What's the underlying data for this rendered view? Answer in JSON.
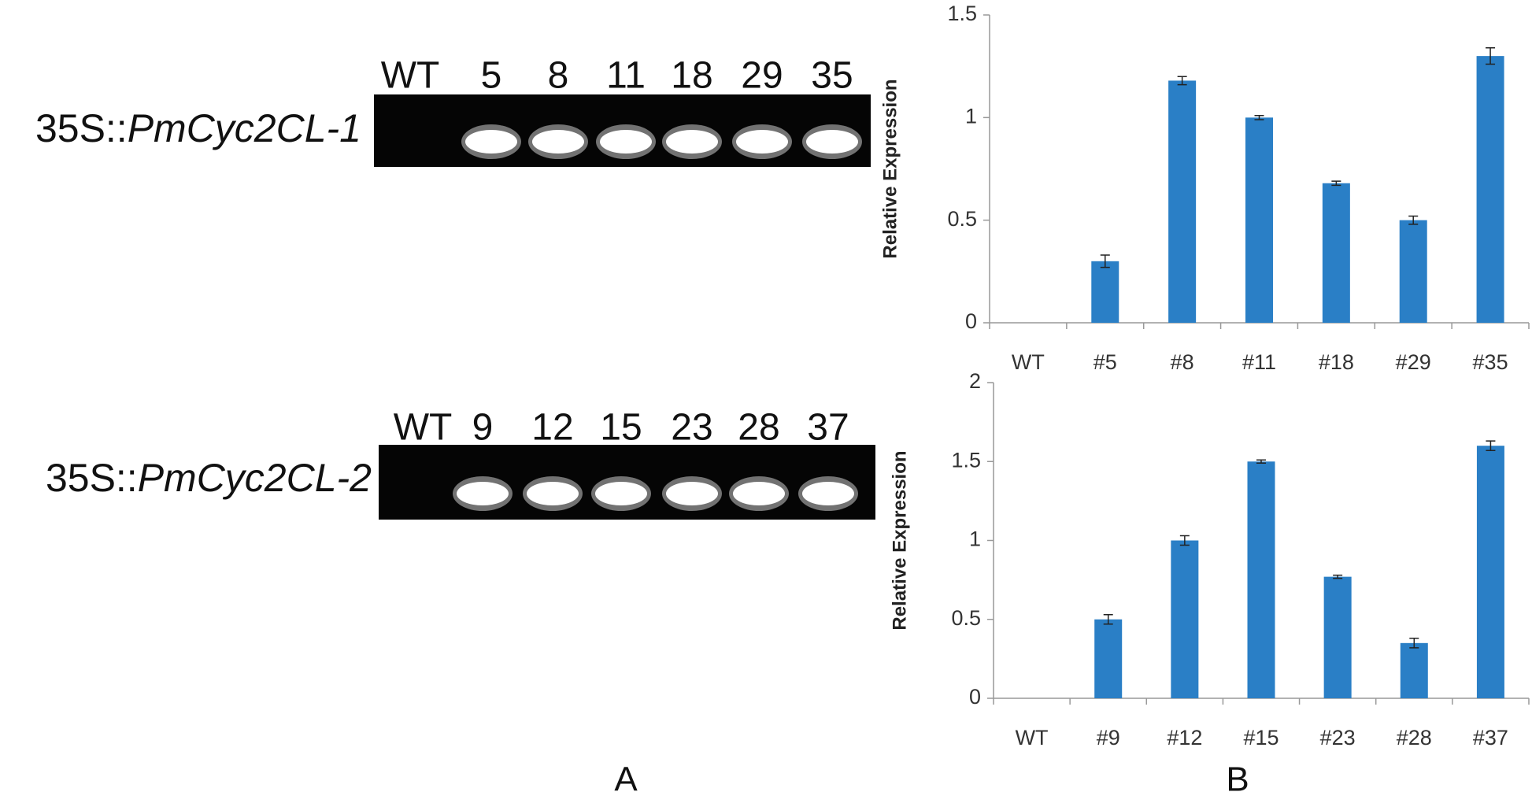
{
  "chart_data": [
    {
      "type": "bar",
      "y_label": "Relative Expression",
      "categories": [
        "WT",
        "#5",
        "#8",
        "#11",
        "#18",
        "#29",
        "#35"
      ],
      "values": [
        0,
        0.3,
        1.18,
        1.0,
        0.68,
        0.5,
        1.3
      ],
      "errors": [
        0,
        0.03,
        0.02,
        0.01,
        0.01,
        0.02,
        0.04
      ],
      "color": "#2a7fc6",
      "ylim": [
        0,
        1.5
      ],
      "yticks": [
        0,
        0.5,
        1,
        1.5
      ],
      "grid": false
    },
    {
      "type": "bar",
      "y_label": "Relative Expression",
      "categories": [
        "WT",
        "#9",
        "#12",
        "#15",
        "#23",
        "#28",
        "#37"
      ],
      "values": [
        0,
        0.5,
        1.0,
        1.5,
        0.77,
        0.35,
        1.6
      ],
      "errors": [
        0,
        0.03,
        0.03,
        0.01,
        0.01,
        0.03,
        0.03
      ],
      "color": "#2a7fc6",
      "ylim": [
        0,
        2
      ],
      "yticks": [
        0,
        0.5,
        1,
        1.5,
        2
      ],
      "grid": false
    }
  ],
  "gels": [
    {
      "construct_prefix": "35S::",
      "construct_gene": "PmCyc2CL-1",
      "lanes": [
        "WT",
        "5",
        "8",
        "11",
        "18",
        "29",
        "35"
      ]
    },
    {
      "construct_prefix": "35S::",
      "construct_gene": "PmCyc2CL-2",
      "lanes": [
        "WT",
        "9",
        "12",
        "15",
        "23",
        "28",
        "37"
      ]
    }
  ],
  "panel_labels": [
    "A",
    "B"
  ]
}
